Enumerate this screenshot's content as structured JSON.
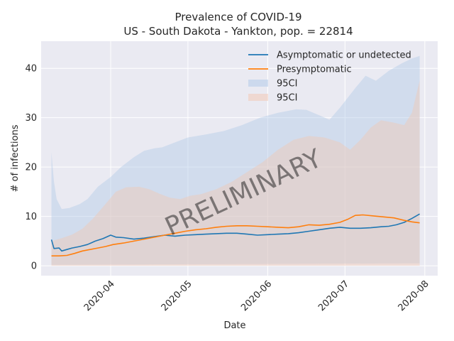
{
  "chart_data": {
    "type": "line",
    "title": "Prevalence of COVID-19",
    "subtitle": "US - South Dakota - Yankton, pop. = 22814",
    "xlabel": "Date",
    "ylabel": "# of infections",
    "watermark": "PRELIMINARY",
    "x_ticks": [
      "2020-04",
      "2020-05",
      "2020-06",
      "2020-07",
      "2020-08"
    ],
    "x_range": [
      "2020-03-05",
      "2020-08-06"
    ],
    "y_ticks": [
      0,
      10,
      20,
      30,
      40
    ],
    "ylim": [
      -2.0,
      45.5
    ],
    "grid": true,
    "legend_position": "top-right",
    "colors": {
      "asymptomatic": "#1f77b4",
      "presymptomatic": "#ff7f0e",
      "ci_asymptomatic": "#aec7e8",
      "ci_presymptomatic": "#f4c5b0",
      "plot_background": "#eaeaf2",
      "grid": "#ffffff"
    },
    "legend": [
      {
        "label": "Asymptomatic or undetected",
        "kind": "line",
        "color": "#1f77b4"
      },
      {
        "label": "Presymptomatic",
        "kind": "line",
        "color": "#ff7f0e"
      },
      {
        "label": "95CI",
        "kind": "patch",
        "color": "#aec7e8"
      },
      {
        "label": "95CI",
        "kind": "patch",
        "color": "#f4c5b0"
      }
    ],
    "series": [
      {
        "name": "Asymptomatic or undetected",
        "color": "#1f77b4",
        "points": [
          [
            "2020-03-09",
            5.3
          ],
          [
            "2020-03-10",
            3.5
          ],
          [
            "2020-03-12",
            3.6
          ],
          [
            "2020-03-13",
            3.0
          ],
          [
            "2020-03-15",
            3.3
          ],
          [
            "2020-03-17",
            3.6
          ],
          [
            "2020-03-20",
            3.9
          ],
          [
            "2020-03-23",
            4.3
          ],
          [
            "2020-03-26",
            5.0
          ],
          [
            "2020-03-29",
            5.5
          ],
          [
            "2020-04-01",
            6.2
          ],
          [
            "2020-04-03",
            5.8
          ],
          [
            "2020-04-06",
            5.7
          ],
          [
            "2020-04-10",
            5.4
          ],
          [
            "2020-04-14",
            5.6
          ],
          [
            "2020-04-18",
            5.9
          ],
          [
            "2020-04-22",
            6.2
          ],
          [
            "2020-04-26",
            6.0
          ],
          [
            "2020-04-30",
            6.2
          ],
          [
            "2020-05-04",
            6.3
          ],
          [
            "2020-05-08",
            6.4
          ],
          [
            "2020-05-12",
            6.5
          ],
          [
            "2020-05-16",
            6.6
          ],
          [
            "2020-05-20",
            6.6
          ],
          [
            "2020-05-24",
            6.4
          ],
          [
            "2020-05-28",
            6.2
          ],
          [
            "2020-06-01",
            6.3
          ],
          [
            "2020-06-05",
            6.4
          ],
          [
            "2020-06-09",
            6.5
          ],
          [
            "2020-06-13",
            6.7
          ],
          [
            "2020-06-17",
            7.0
          ],
          [
            "2020-06-21",
            7.3
          ],
          [
            "2020-06-25",
            7.6
          ],
          [
            "2020-06-29",
            7.8
          ],
          [
            "2020-07-03",
            7.6
          ],
          [
            "2020-07-07",
            7.6
          ],
          [
            "2020-07-11",
            7.7
          ],
          [
            "2020-07-15",
            7.9
          ],
          [
            "2020-07-18",
            8.0
          ],
          [
            "2020-07-21",
            8.3
          ],
          [
            "2020-07-24",
            8.8
          ],
          [
            "2020-07-27",
            9.6
          ],
          [
            "2020-07-30",
            10.5
          ]
        ]
      },
      {
        "name": "Presymptomatic",
        "color": "#ff7f0e",
        "points": [
          [
            "2020-03-09",
            2.0
          ],
          [
            "2020-03-12",
            2.0
          ],
          [
            "2020-03-15",
            2.1
          ],
          [
            "2020-03-18",
            2.5
          ],
          [
            "2020-03-21",
            3.0
          ],
          [
            "2020-03-24",
            3.3
          ],
          [
            "2020-03-27",
            3.6
          ],
          [
            "2020-03-30",
            3.9
          ],
          [
            "2020-04-02",
            4.3
          ],
          [
            "2020-04-06",
            4.6
          ],
          [
            "2020-04-10",
            5.0
          ],
          [
            "2020-04-14",
            5.4
          ],
          [
            "2020-04-18",
            5.8
          ],
          [
            "2020-04-22",
            6.2
          ],
          [
            "2020-04-26",
            6.6
          ],
          [
            "2020-04-30",
            7.0
          ],
          [
            "2020-05-04",
            7.3
          ],
          [
            "2020-05-08",
            7.5
          ],
          [
            "2020-05-12",
            7.8
          ],
          [
            "2020-05-16",
            8.0
          ],
          [
            "2020-05-20",
            8.1
          ],
          [
            "2020-05-24",
            8.1
          ],
          [
            "2020-05-28",
            8.0
          ],
          [
            "2020-06-01",
            7.9
          ],
          [
            "2020-06-05",
            7.8
          ],
          [
            "2020-06-09",
            7.7
          ],
          [
            "2020-06-13",
            7.9
          ],
          [
            "2020-06-17",
            8.3
          ],
          [
            "2020-06-21",
            8.2
          ],
          [
            "2020-06-25",
            8.4
          ],
          [
            "2020-06-29",
            8.8
          ],
          [
            "2020-07-02",
            9.4
          ],
          [
            "2020-07-05",
            10.2
          ],
          [
            "2020-07-08",
            10.3
          ],
          [
            "2020-07-12",
            10.1
          ],
          [
            "2020-07-16",
            9.9
          ],
          [
            "2020-07-20",
            9.7
          ],
          [
            "2020-07-24",
            9.2
          ],
          [
            "2020-07-27",
            8.9
          ],
          [
            "2020-07-30",
            8.7
          ]
        ]
      }
    ],
    "ci_bands": [
      {
        "name": "95CI",
        "color": "#aec7e8",
        "upper": [
          [
            "2020-03-09",
            23.0
          ],
          [
            "2020-03-10",
            17.0
          ],
          [
            "2020-03-11",
            13.5
          ],
          [
            "2020-03-13",
            11.5
          ],
          [
            "2020-03-16",
            11.7
          ],
          [
            "2020-03-20",
            12.5
          ],
          [
            "2020-03-23",
            13.5
          ],
          [
            "2020-03-27",
            16.0
          ],
          [
            "2020-04-01",
            18.0
          ],
          [
            "2020-04-05",
            20.0
          ],
          [
            "2020-04-10",
            22.0
          ],
          [
            "2020-04-14",
            23.3
          ],
          [
            "2020-04-18",
            23.8
          ],
          [
            "2020-04-21",
            24.0
          ],
          [
            "2020-04-26",
            25.0
          ],
          [
            "2020-05-01",
            26.0
          ],
          [
            "2020-05-08",
            26.6
          ],
          [
            "2020-05-15",
            27.3
          ],
          [
            "2020-05-22",
            28.5
          ],
          [
            "2020-05-29",
            30.0
          ],
          [
            "2020-06-05",
            31.0
          ],
          [
            "2020-06-12",
            31.7
          ],
          [
            "2020-06-16",
            31.6
          ],
          [
            "2020-06-21",
            30.5
          ],
          [
            "2020-06-25",
            29.6
          ],
          [
            "2020-06-29",
            32.0
          ],
          [
            "2020-07-05",
            36.0
          ],
          [
            "2020-07-09",
            38.5
          ],
          [
            "2020-07-13",
            37.5
          ],
          [
            "2020-07-18",
            39.5
          ],
          [
            "2020-07-23",
            41.0
          ],
          [
            "2020-07-27",
            42.0
          ],
          [
            "2020-07-30",
            42.5
          ]
        ],
        "lower": [
          [
            "2020-03-09",
            0.2
          ],
          [
            "2020-07-30",
            0.5
          ]
        ]
      },
      {
        "name": "95CI",
        "color": "#f4c5b0",
        "upper": [
          [
            "2020-03-09",
            5.0
          ],
          [
            "2020-03-13",
            5.6
          ],
          [
            "2020-03-17",
            6.3
          ],
          [
            "2020-03-21",
            7.5
          ],
          [
            "2020-03-25",
            9.5
          ],
          [
            "2020-03-30",
            12.5
          ],
          [
            "2020-04-03",
            15.0
          ],
          [
            "2020-04-07",
            15.9
          ],
          [
            "2020-04-12",
            16.0
          ],
          [
            "2020-04-16",
            15.5
          ],
          [
            "2020-04-20",
            14.6
          ],
          [
            "2020-04-24",
            13.8
          ],
          [
            "2020-04-28",
            13.5
          ],
          [
            "2020-05-02",
            14.2
          ],
          [
            "2020-05-06",
            14.5
          ],
          [
            "2020-05-12",
            15.5
          ],
          [
            "2020-05-18",
            17.0
          ],
          [
            "2020-05-24",
            19.0
          ],
          [
            "2020-05-30",
            21.0
          ],
          [
            "2020-06-05",
            23.5
          ],
          [
            "2020-06-11",
            25.5
          ],
          [
            "2020-06-17",
            26.3
          ],
          [
            "2020-06-23",
            26.0
          ],
          [
            "2020-06-29",
            25.0
          ],
          [
            "2020-07-03",
            23.5
          ],
          [
            "2020-07-07",
            25.5
          ],
          [
            "2020-07-11",
            28.0
          ],
          [
            "2020-07-15",
            29.5
          ],
          [
            "2020-07-20",
            29.0
          ],
          [
            "2020-07-24",
            28.5
          ],
          [
            "2020-07-27",
            31.0
          ],
          [
            "2020-07-30",
            37.5
          ]
        ],
        "lower": [
          [
            "2020-03-09",
            0.0
          ],
          [
            "2020-07-30",
            0.0
          ]
        ]
      }
    ]
  }
}
